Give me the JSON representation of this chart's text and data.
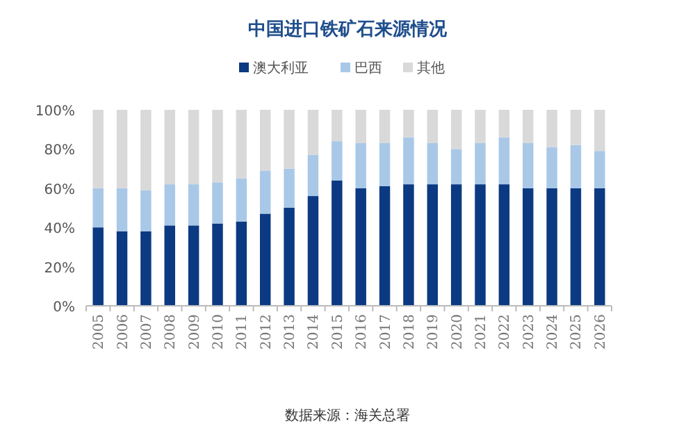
{
  "chart_data": {
    "type": "bar",
    "stacked": true,
    "title": "中国进口铁矿石来源情况",
    "categories": [
      "2005",
      "2006",
      "2007",
      "2008",
      "2009",
      "2010",
      "2011",
      "2012",
      "2013",
      "2014",
      "2015",
      "2016",
      "2017",
      "2018",
      "2019",
      "2020",
      "2021",
      "2022",
      "2023",
      "2024",
      "2025",
      "2026"
    ],
    "series": [
      {
        "name": "澳大利亚",
        "color": "#0b3a82",
        "values": [
          40,
          38,
          38,
          41,
          41,
          42,
          43,
          47,
          50,
          56,
          64,
          60,
          61,
          62,
          62,
          62,
          62,
          62,
          60,
          60,
          60,
          60
        ]
      },
      {
        "name": "巴西",
        "color": "#a9c8e8",
        "values": [
          20,
          22,
          21,
          21,
          21,
          21,
          22,
          22,
          20,
          21,
          20,
          23,
          22,
          24,
          21,
          18,
          21,
          24,
          23,
          21,
          22,
          19
        ]
      },
      {
        "name": "其他",
        "color": "#d9d9d9",
        "values": [
          40,
          40,
          41,
          38,
          38,
          37,
          35,
          31,
          30,
          23,
          16,
          17,
          17,
          14,
          17,
          20,
          17,
          14,
          17,
          19,
          18,
          21
        ]
      }
    ],
    "ylim": [
      0,
      100
    ],
    "yticks": [
      {
        "value": 0,
        "label": "0%"
      },
      {
        "value": 20,
        "label": "20%"
      },
      {
        "value": 40,
        "label": "40%"
      },
      {
        "value": 60,
        "label": "60%"
      },
      {
        "value": 80,
        "label": "80%"
      },
      {
        "value": 100,
        "label": "100%"
      }
    ],
    "legend": "top",
    "grid": false,
    "annotations": [
      "数据来源：海关总署"
    ]
  }
}
